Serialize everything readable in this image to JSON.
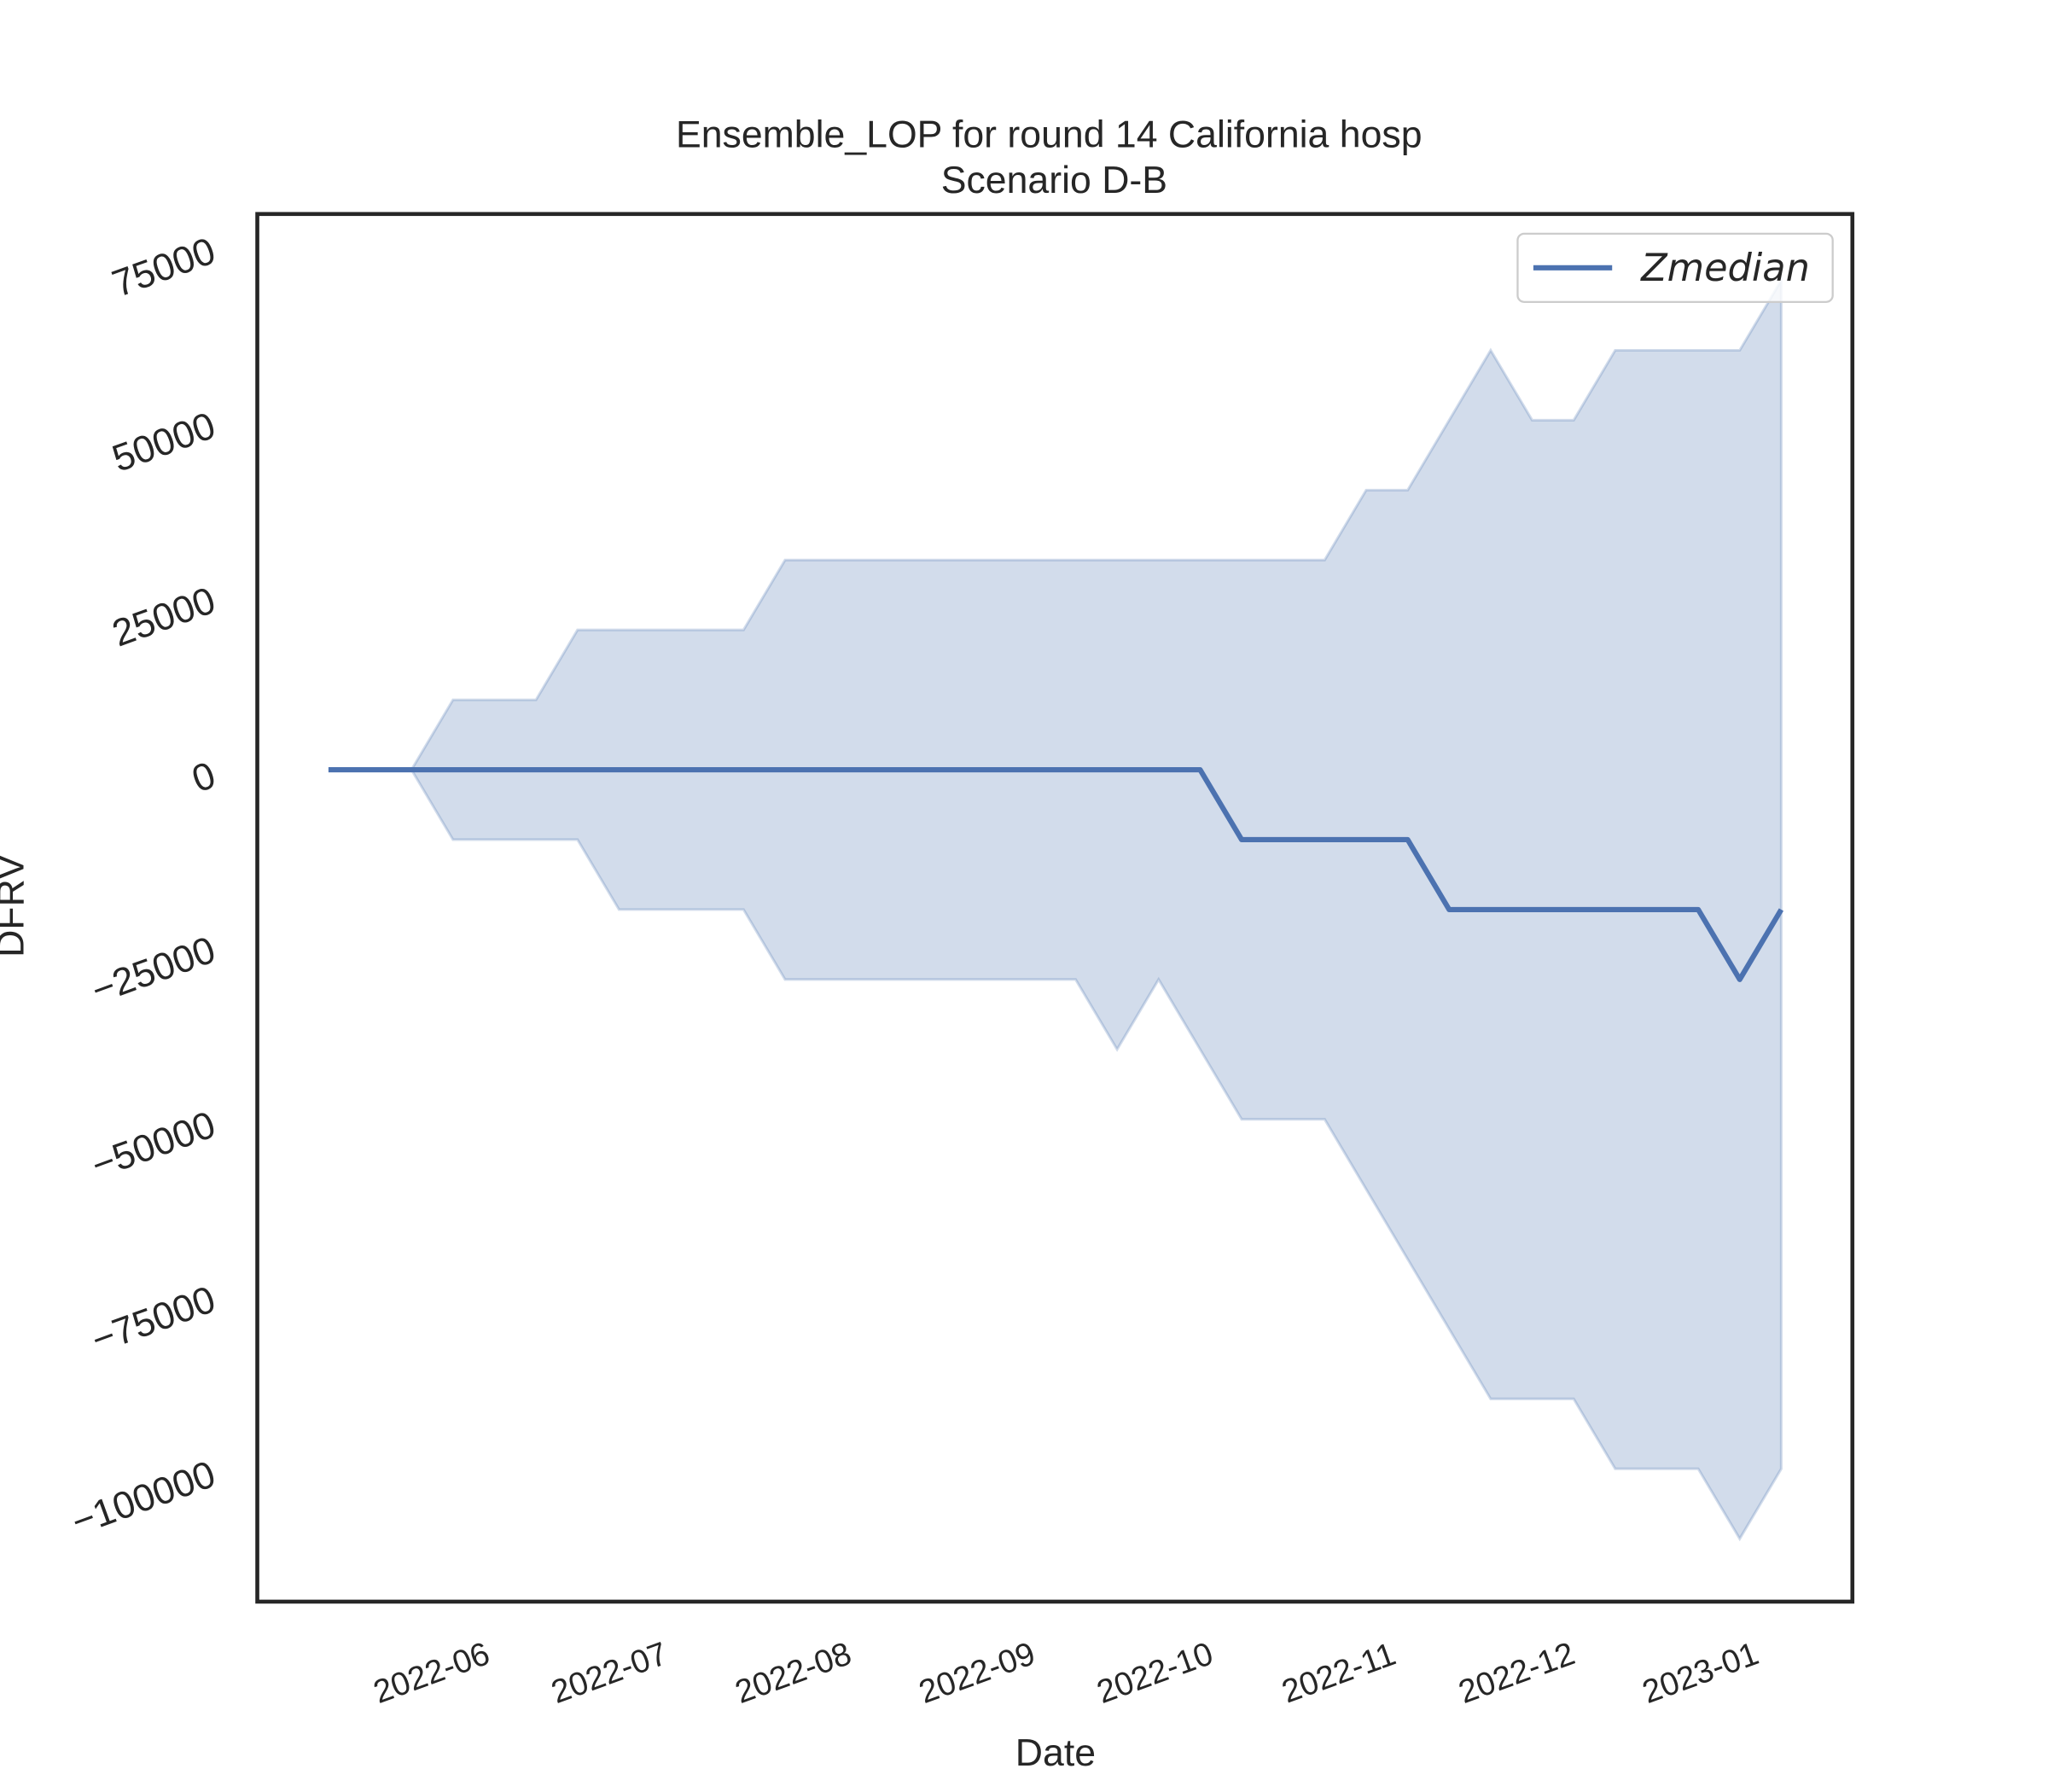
{
  "chart_data": {
    "type": "line",
    "title": "Ensemble_LOP for round 14 California hosp",
    "subtitle": "Scenario D-B",
    "x_label": "Date",
    "y_label": "DFRV",
    "x": [
      "2022-05-14",
      "2022-05-21",
      "2022-05-28",
      "2022-06-04",
      "2022-06-11",
      "2022-06-18",
      "2022-06-25",
      "2022-07-02",
      "2022-07-09",
      "2022-07-16",
      "2022-07-23",
      "2022-07-30",
      "2022-08-06",
      "2022-08-13",
      "2022-08-20",
      "2022-08-27",
      "2022-09-03",
      "2022-09-10",
      "2022-09-17",
      "2022-09-24",
      "2022-10-01",
      "2022-10-08",
      "2022-10-15",
      "2022-10-22",
      "2022-10-29",
      "2022-11-05",
      "2022-11-12",
      "2022-11-19",
      "2022-11-26",
      "2022-12-03",
      "2022-12-10",
      "2022-12-17",
      "2022-12-24",
      "2022-12-31",
      "2023-01-07",
      "2023-01-14"
    ],
    "series": [
      {
        "name": "Zmedian",
        "color": "#4c72b0",
        "values": [
          0,
          0,
          0,
          0,
          0,
          0,
          0,
          0,
          0,
          0,
          0,
          0,
          0,
          0,
          0,
          0,
          0,
          0,
          0,
          0,
          0,
          0,
          -10000,
          -10000,
          -10000,
          -10000,
          -10000,
          -20000,
          -20000,
          -20000,
          -20000,
          -20000,
          -20000,
          -20000,
          -30000,
          -20000
        ]
      }
    ],
    "band": {
      "color": "#4c72b0",
      "upper": [
        0,
        0,
        0,
        10000,
        10000,
        10000,
        20000,
        20000,
        20000,
        20000,
        20000,
        30000,
        30000,
        30000,
        30000,
        30000,
        30000,
        30000,
        30000,
        30000,
        30000,
        30000,
        30000,
        30000,
        30000,
        40000,
        40000,
        50000,
        60000,
        50000,
        50000,
        60000,
        60000,
        60000,
        60000,
        70000
      ],
      "lower": [
        0,
        0,
        0,
        -10000,
        -10000,
        -10000,
        -10000,
        -20000,
        -20000,
        -20000,
        -20000,
        -30000,
        -30000,
        -30000,
        -30000,
        -30000,
        -30000,
        -30000,
        -30000,
        -40000,
        -30000,
        -40000,
        -50000,
        -50000,
        -50000,
        -60000,
        -70000,
        -80000,
        -90000,
        -90000,
        -90000,
        -100000,
        -100000,
        -100000,
        -110000,
        -100000
      ]
    },
    "xlim": [
      "2022-05-02",
      "2023-01-26"
    ],
    "xticks": [
      {
        "value": "2022-06-01",
        "label": "2022-06"
      },
      {
        "value": "2022-07-01",
        "label": "2022-07"
      },
      {
        "value": "2022-08-01",
        "label": "2022-08"
      },
      {
        "value": "2022-09-01",
        "label": "2022-09"
      },
      {
        "value": "2022-10-01",
        "label": "2022-10"
      },
      {
        "value": "2022-11-01",
        "label": "2022-11"
      },
      {
        "value": "2022-12-01",
        "label": "2022-12"
      },
      {
        "value": "2023-01-01",
        "label": "2023-01"
      }
    ],
    "ylim": [
      -119000,
      79500
    ],
    "yticks": [
      {
        "value": -100000,
        "label": "−100000"
      },
      {
        "value": -75000,
        "label": "−75000"
      },
      {
        "value": -50000,
        "label": "−50000"
      },
      {
        "value": -25000,
        "label": "−25000"
      },
      0,
      25000,
      50000,
      75000
    ],
    "legend": "upper right"
  }
}
